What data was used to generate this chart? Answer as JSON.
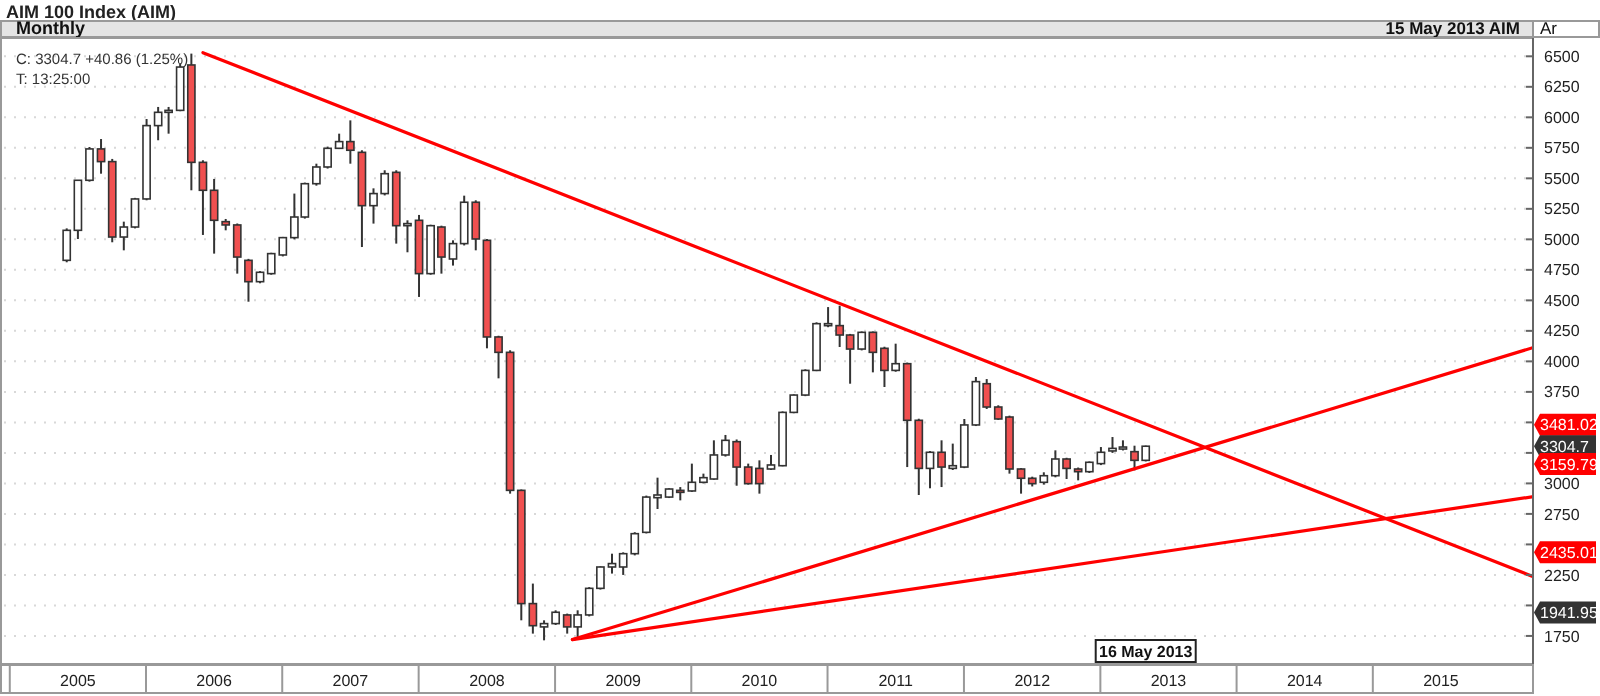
{
  "chart_data": {
    "type": "candlestick",
    "title": "AIM 100 Index (AIM)",
    "subtitle": "Monthly",
    "annotations": [
      "C: 3304.7 +40.86 (1.25%)",
      "T: 13:25:00",
      "15 May 2013  AIM",
      "Ar",
      "16 May 2013",
      {
        "text": "3481.02",
        "y": 3481.02
      },
      {
        "text": "3304.7",
        "y": 3304.7
      },
      {
        "text": "3159.79",
        "y": 3159.79
      },
      {
        "text": "2435.01",
        "y": 2435.01
      },
      {
        "text": "1941.95",
        "y": 1941.95
      }
    ],
    "x": [
      "2005-06",
      "2005-07",
      "2005-08",
      "2005-09",
      "2005-10",
      "2005-11",
      "2005-12",
      "2006-01",
      "2006-02",
      "2006-03",
      "2006-04",
      "2006-05",
      "2006-06",
      "2006-07",
      "2006-08",
      "2006-09",
      "2006-10",
      "2006-11",
      "2006-12",
      "2007-01",
      "2007-02",
      "2007-03",
      "2007-04",
      "2007-05",
      "2007-06",
      "2007-07",
      "2007-08",
      "2007-09",
      "2007-10",
      "2007-11",
      "2007-12",
      "2008-01",
      "2008-02",
      "2008-03",
      "2008-04",
      "2008-05",
      "2008-06",
      "2008-07",
      "2008-08",
      "2008-09",
      "2008-10",
      "2008-11",
      "2008-12",
      "2009-01",
      "2009-02",
      "2009-03",
      "2009-04",
      "2009-05",
      "2009-06",
      "2009-07",
      "2009-08",
      "2009-09",
      "2009-10",
      "2009-11",
      "2009-12",
      "2010-01",
      "2010-02",
      "2010-03",
      "2010-04",
      "2010-05",
      "2010-06",
      "2010-07",
      "2010-08",
      "2010-09",
      "2010-10",
      "2010-11",
      "2010-12",
      "2011-01",
      "2011-02",
      "2011-03",
      "2011-04",
      "2011-05",
      "2011-06",
      "2011-07",
      "2011-08",
      "2011-09",
      "2011-10",
      "2011-11",
      "2011-12",
      "2012-01",
      "2012-02",
      "2012-03",
      "2012-04",
      "2012-05",
      "2012-06",
      "2012-07",
      "2012-08",
      "2012-09",
      "2012-10",
      "2012-11",
      "2012-12",
      "2013-01",
      "2013-02",
      "2013-03",
      "2013-04",
      "2013-05"
    ],
    "ohlc": [
      [
        4828,
        5090,
        4812,
        5074
      ],
      [
        5074,
        5484,
        5003,
        5484
      ],
      [
        5484,
        5757,
        5473,
        5741
      ],
      [
        5741,
        5822,
        5538,
        5637
      ],
      [
        5637,
        5659,
        4976,
        5019
      ],
      [
        5019,
        5145,
        4910,
        5101
      ],
      [
        5101,
        5340,
        5090,
        5331
      ],
      [
        5331,
        5986,
        5320,
        5932
      ],
      [
        5932,
        6085,
        5812,
        6041
      ],
      [
        6041,
        6085,
        5866,
        6057
      ],
      [
        6057,
        6440,
        6050,
        6412
      ],
      [
        6429,
        6522,
        5402,
        5631
      ],
      [
        5631,
        5648,
        5036,
        5402
      ],
      [
        5402,
        5495,
        4883,
        5156
      ],
      [
        5145,
        5167,
        5074,
        5118
      ],
      [
        5118,
        5130,
        4719,
        4855
      ],
      [
        4828,
        4840,
        4489,
        4653
      ],
      [
        4653,
        4740,
        4640,
        4730
      ],
      [
        4719,
        4890,
        4710,
        4883
      ],
      [
        4872,
        5020,
        4860,
        5014
      ],
      [
        5014,
        5375,
        5000,
        5183
      ],
      [
        5183,
        5465,
        5170,
        5456
      ],
      [
        5456,
        5620,
        5440,
        5593
      ],
      [
        5593,
        5760,
        5580,
        5746
      ],
      [
        5746,
        5866,
        5740,
        5801
      ],
      [
        5801,
        5975,
        5620,
        5730
      ],
      [
        5713,
        5730,
        4937,
        5276
      ],
      [
        5276,
        5418,
        5129,
        5375
      ],
      [
        5375,
        5566,
        5360,
        5538
      ],
      [
        5549,
        5566,
        4965,
        5112
      ],
      [
        5112,
        5156,
        4894,
        5129
      ],
      [
        5156,
        5200,
        4528,
        4719
      ],
      [
        4719,
        5120,
        4710,
        5112
      ],
      [
        5101,
        5112,
        4719,
        4855
      ],
      [
        4839,
        4992,
        4785,
        4965
      ],
      [
        4965,
        5358,
        4950,
        5304
      ],
      [
        5304,
        5320,
        4910,
        5003
      ],
      [
        4992,
        5003,
        4107,
        4200
      ],
      [
        4200,
        4210,
        3861,
        4074
      ],
      [
        4074,
        4091,
        2916,
        2943
      ],
      [
        2943,
        2950,
        1878,
        2015
      ],
      [
        2015,
        2179,
        1769,
        1834
      ],
      [
        1824,
        1878,
        1714,
        1851
      ],
      [
        1851,
        1960,
        1840,
        1944
      ],
      [
        1922,
        1933,
        1769,
        1824
      ],
      [
        1824,
        1960,
        1742,
        1922
      ],
      [
        1922,
        2150,
        1910,
        2140
      ],
      [
        2140,
        2320,
        2130,
        2315
      ],
      [
        2315,
        2424,
        2261,
        2343
      ],
      [
        2315,
        2435,
        2250,
        2424
      ],
      [
        2424,
        2600,
        2410,
        2588
      ],
      [
        2599,
        2900,
        2590,
        2888
      ],
      [
        2883,
        3047,
        2790,
        2905
      ],
      [
        2888,
        2960,
        2880,
        2954
      ],
      [
        2943,
        2970,
        2861,
        2927
      ],
      [
        2938,
        3162,
        2930,
        3009
      ],
      [
        3009,
        3080,
        3000,
        3047
      ],
      [
        3036,
        3353,
        3030,
        3233
      ],
      [
        3233,
        3397,
        3220,
        3353
      ],
      [
        3342,
        3360,
        2981,
        3134
      ],
      [
        3134,
        3162,
        2990,
        2998
      ],
      [
        3123,
        3189,
        2916,
        2998
      ],
      [
        3118,
        3233,
        3110,
        3151
      ],
      [
        3145,
        3590,
        3140,
        3582
      ],
      [
        3582,
        3730,
        3575,
        3724
      ],
      [
        3724,
        3935,
        3715,
        3926
      ],
      [
        3926,
        4320,
        3920,
        4309
      ],
      [
        4293,
        4445,
        4280,
        4309
      ],
      [
        4293,
        4456,
        4118,
        4216
      ],
      [
        4216,
        4225,
        3817,
        4101
      ],
      [
        4101,
        4245,
        4090,
        4238
      ],
      [
        4238,
        4245,
        3910,
        4074
      ],
      [
        4107,
        4120,
        3790,
        3926
      ],
      [
        3926,
        4145,
        3915,
        3981
      ],
      [
        3981,
        3990,
        3134,
        3517
      ],
      [
        3517,
        3530,
        2905,
        3123
      ],
      [
        3123,
        3265,
        2960,
        3255
      ],
      [
        3255,
        3353,
        2970,
        3134
      ],
      [
        3123,
        3326,
        3110,
        3145
      ],
      [
        3134,
        3528,
        3125,
        3479
      ],
      [
        3479,
        3872,
        3470,
        3834
      ],
      [
        3817,
        3855,
        3610,
        3626
      ],
      [
        3626,
        3640,
        3520,
        3528
      ],
      [
        3544,
        3555,
        3080,
        3118
      ],
      [
        3118,
        3125,
        2916,
        3042
      ],
      [
        3042,
        3055,
        2975,
        2998
      ],
      [
        3009,
        3091,
        2990,
        3063
      ],
      [
        3063,
        3271,
        3050,
        3200
      ],
      [
        3200,
        3210,
        3036,
        3123
      ],
      [
        3118,
        3130,
        3025,
        3096
      ],
      [
        3096,
        3180,
        3085,
        3173
      ],
      [
        3162,
        3298,
        3150,
        3255
      ],
      [
        3266,
        3380,
        3250,
        3287
      ],
      [
        3282,
        3353,
        3270,
        3298
      ],
      [
        3260,
        3309,
        3107,
        3189
      ],
      [
        3189,
        3310,
        3180,
        3304.7
      ]
    ],
    "series": [
      {
        "type": "line",
        "color": "#ff0000",
        "x": [
          "2006-06-01",
          "2016-03-01"
        ],
        "values": [
          6530,
          2240
        ]
      },
      {
        "type": "line",
        "color": "#ff0000",
        "x": [
          "2009-02-15",
          "2016-03-01"
        ],
        "values": [
          1720,
          4110
        ]
      },
      {
        "type": "line",
        "color": "#ff0000",
        "x": [
          "2009-02-15",
          "2016-03-01"
        ],
        "values": [
          1720,
          2890
        ]
      }
    ],
    "xlim": [
      "2004-12-15",
      "2016-03-01"
    ],
    "xticks": [
      {
        "value": "2005-07-01",
        "label": "2005"
      },
      {
        "value": "2006-07-01",
        "label": "2006"
      },
      {
        "value": "2007-07-01",
        "label": "2007"
      },
      {
        "value": "2008-07-01",
        "label": "2008"
      },
      {
        "value": "2009-07-01",
        "label": "2009"
      },
      {
        "value": "2010-07-01",
        "label": "2010"
      },
      {
        "value": "2011-07-01",
        "label": "2011"
      },
      {
        "value": "2012-07-01",
        "label": "2012"
      },
      {
        "value": "2013-07-01",
        "label": "2013"
      },
      {
        "value": "2014-07-01",
        "label": "2014"
      },
      {
        "value": "2015-07-01",
        "label": "2015"
      }
    ],
    "ylim": [
      1520,
      6650
    ],
    "yticks": [
      1750,
      {
        "value": 2000,
        "label": null
      },
      2250,
      {
        "value": 2500,
        "label": null
      },
      2750,
      3000,
      {
        "value": 3250,
        "label": null
      },
      {
        "value": 3500,
        "label": null
      },
      3750,
      4000,
      4250,
      4500,
      4750,
      5000,
      5250,
      5500,
      5750,
      6000,
      6250,
      6500
    ],
    "grid": "y"
  }
}
